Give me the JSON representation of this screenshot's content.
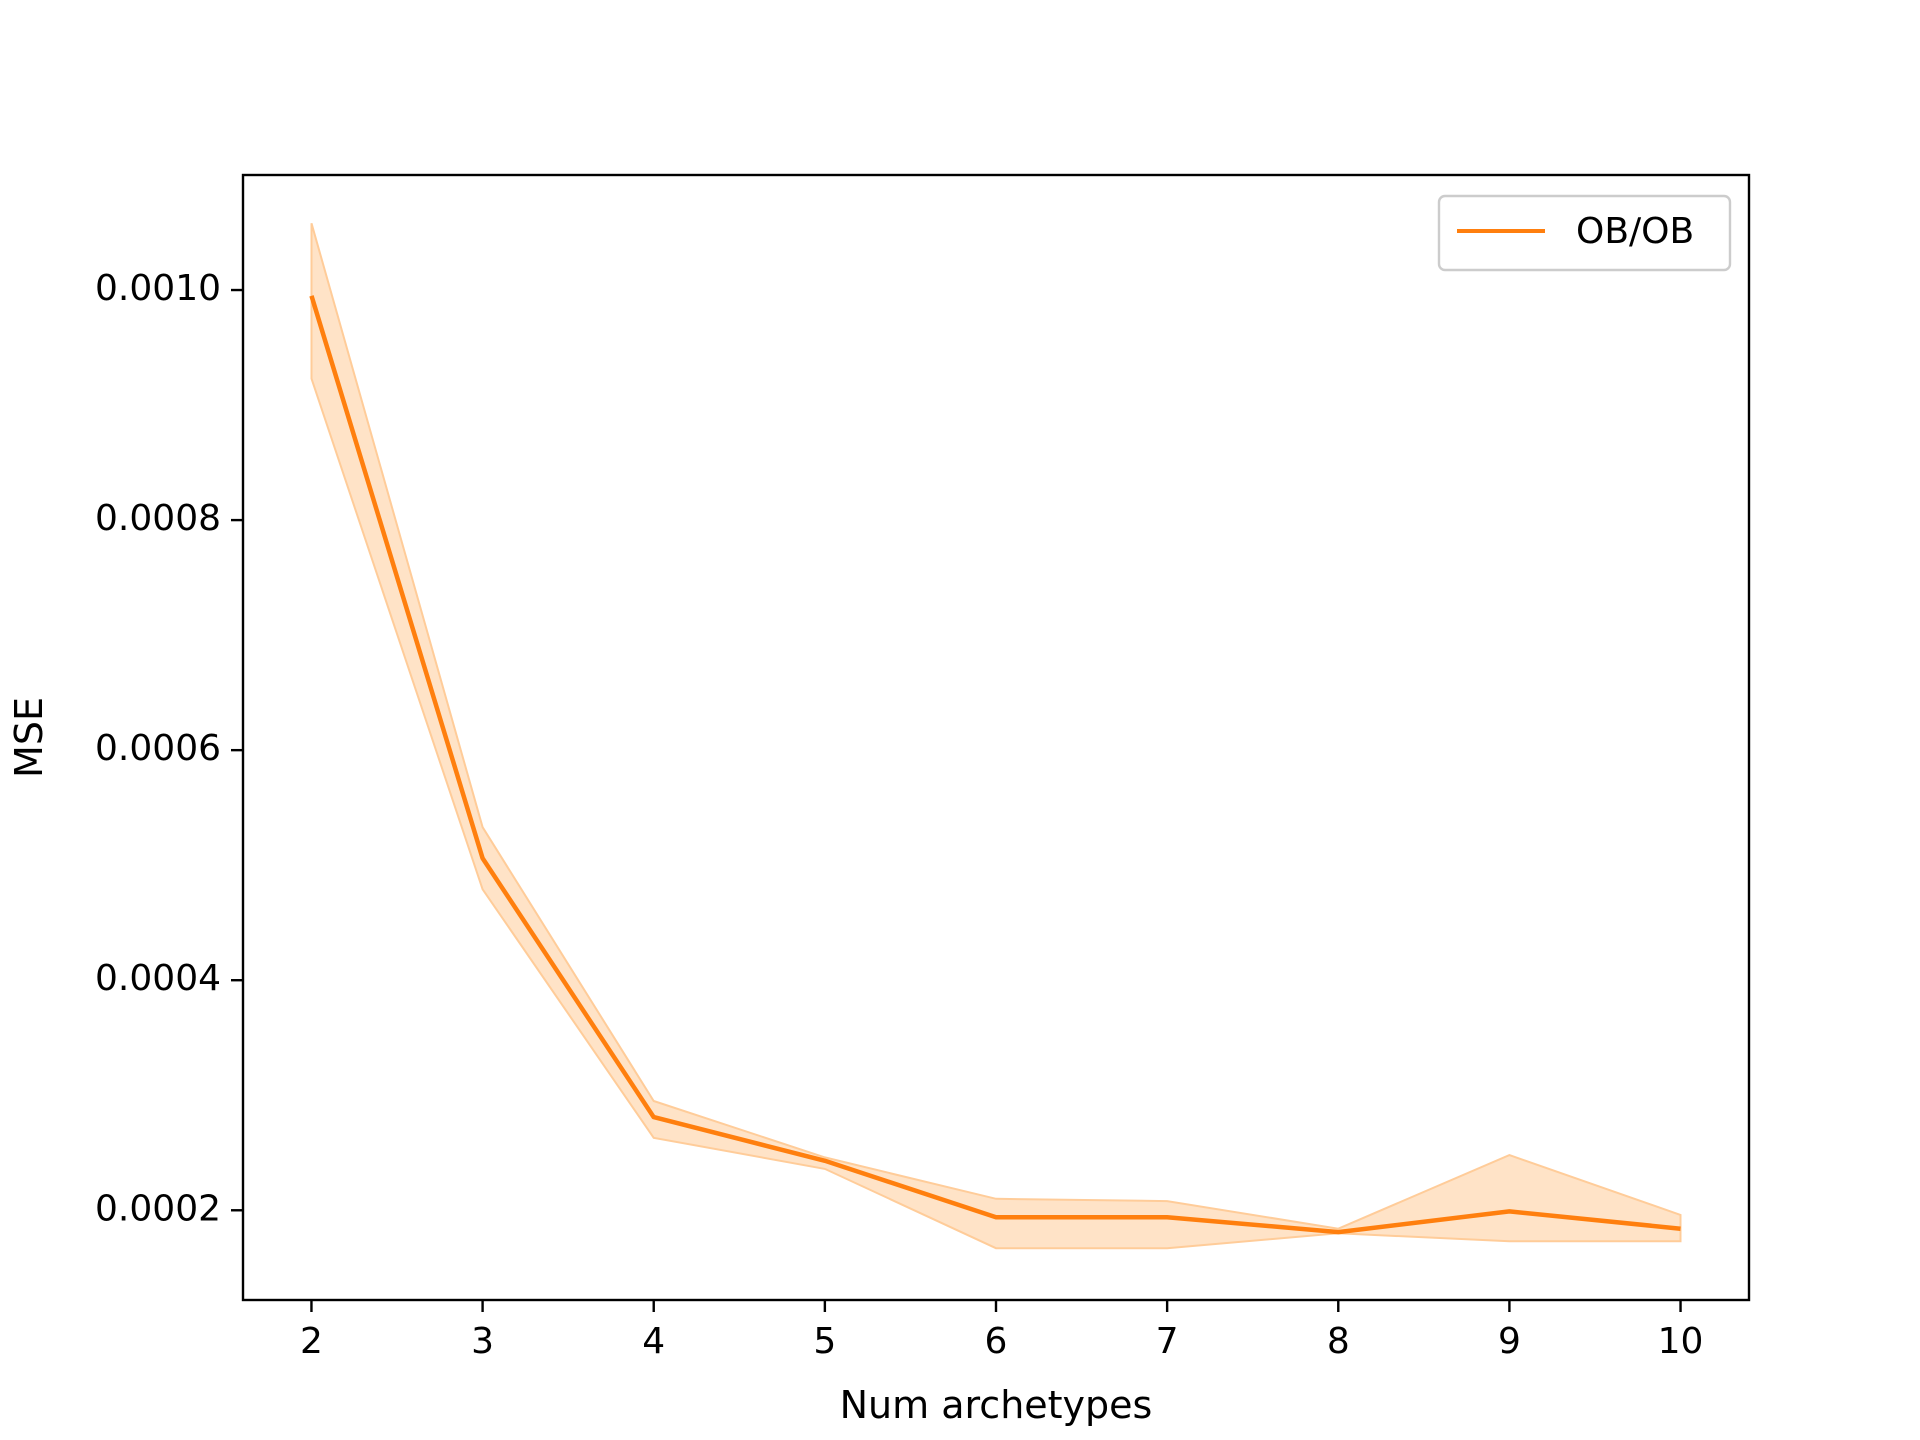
{
  "chart_data": {
    "type": "line",
    "xlabel": "Num archetypes",
    "ylabel": "MSE",
    "xlim": [
      1.6,
      10.4
    ],
    "ylim": [
      0.000122,
      0.0011
    ],
    "x_ticks": [
      2,
      3,
      4,
      5,
      6,
      7,
      8,
      9,
      10
    ],
    "y_ticks": [
      0.0002,
      0.0004,
      0.0006,
      0.0008,
      0.001
    ],
    "y_tick_labels": [
      "0.0002",
      "0.0004",
      "0.0006",
      "0.0008",
      "0.0010"
    ],
    "grid": false,
    "legend_position": "top-right",
    "series": [
      {
        "name": "OB/OB",
        "color": "#ff7f0e",
        "band_color": "#ffcc99",
        "x": [
          2,
          3,
          4,
          5,
          6,
          7,
          8,
          9,
          10
        ],
        "values": [
          0.000995,
          0.000506,
          0.000281,
          0.000243,
          0.000194,
          0.000194,
          0.000181,
          0.000199,
          0.000184
        ],
        "upper": [
          0.001058,
          0.000533,
          0.000295,
          0.000246,
          0.00021,
          0.000208,
          0.000184,
          0.000248,
          0.000196
        ],
        "lower": [
          0.000923,
          0.000479,
          0.000263,
          0.000236,
          0.000167,
          0.000167,
          0.00018,
          0.000173,
          0.000173
        ]
      }
    ]
  }
}
